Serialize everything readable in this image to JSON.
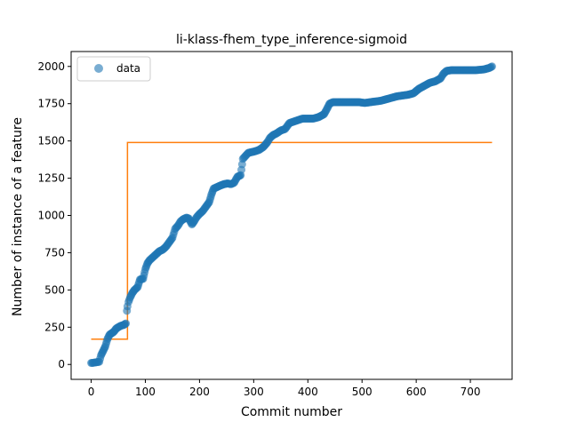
{
  "chart_data": {
    "type": "scatter",
    "title": "li-klass-fhem_type_inference-sigmoid",
    "xlabel": "Commit number",
    "ylabel": "Number of instance of a feature",
    "xlim": [
      -37,
      777
    ],
    "ylim": [
      -100,
      2100
    ],
    "xticks": [
      0,
      100,
      200,
      300,
      400,
      500,
      600,
      700
    ],
    "yticks": [
      0,
      250,
      500,
      750,
      1000,
      1250,
      1500,
      1750,
      2000
    ],
    "grid": false,
    "legend": {
      "placement": "top-left",
      "entries": [
        {
          "name": "data",
          "marker": "circle"
        }
      ]
    },
    "colors": {
      "data": "#1f77b4",
      "fit": "#ff7f0e"
    },
    "series": [
      {
        "name": "data",
        "kind": "scatter",
        "points": [
          [
            0,
            10
          ],
          [
            5,
            12
          ],
          [
            10,
            15
          ],
          [
            15,
            18
          ],
          [
            18,
            60
          ],
          [
            22,
            90
          ],
          [
            26,
            120
          ],
          [
            30,
            170
          ],
          [
            34,
            200
          ],
          [
            38,
            210
          ],
          [
            42,
            220
          ],
          [
            46,
            240
          ],
          [
            50,
            250
          ],
          [
            55,
            260
          ],
          [
            60,
            265
          ],
          [
            64,
            275
          ],
          [
            66,
            360
          ],
          [
            67,
            390
          ],
          [
            69,
            420
          ],
          [
            72,
            450
          ],
          [
            76,
            480
          ],
          [
            80,
            500
          ],
          [
            86,
            520
          ],
          [
            90,
            570
          ],
          [
            96,
            575
          ],
          [
            100,
            640
          ],
          [
            104,
            680
          ],
          [
            108,
            700
          ],
          [
            114,
            720
          ],
          [
            120,
            740
          ],
          [
            126,
            760
          ],
          [
            132,
            770
          ],
          [
            138,
            790
          ],
          [
            144,
            820
          ],
          [
            150,
            850
          ],
          [
            155,
            910
          ],
          [
            160,
            930
          ],
          [
            165,
            960
          ],
          [
            170,
            975
          ],
          [
            176,
            985
          ],
          [
            180,
            980
          ],
          [
            186,
            940
          ],
          [
            190,
            960
          ],
          [
            195,
            990
          ],
          [
            200,
            1010
          ],
          [
            206,
            1030
          ],
          [
            212,
            1060
          ],
          [
            218,
            1090
          ],
          [
            222,
            1140
          ],
          [
            226,
            1180
          ],
          [
            232,
            1190
          ],
          [
            238,
            1200
          ],
          [
            245,
            1210
          ],
          [
            252,
            1215
          ],
          [
            258,
            1210
          ],
          [
            264,
            1220
          ],
          [
            270,
            1260
          ],
          [
            276,
            1270
          ],
          [
            280,
            1380
          ],
          [
            285,
            1400
          ],
          [
            290,
            1420
          ],
          [
            296,
            1425
          ],
          [
            302,
            1430
          ],
          [
            310,
            1440
          ],
          [
            318,
            1460
          ],
          [
            325,
            1490
          ],
          [
            330,
            1520
          ],
          [
            336,
            1540
          ],
          [
            342,
            1550
          ],
          [
            350,
            1570
          ],
          [
            358,
            1580
          ],
          [
            366,
            1620
          ],
          [
            374,
            1630
          ],
          [
            382,
            1640
          ],
          [
            390,
            1650
          ],
          [
            400,
            1650
          ],
          [
            410,
            1650
          ],
          [
            420,
            1660
          ],
          [
            430,
            1680
          ],
          [
            436,
            1720
          ],
          [
            440,
            1750
          ],
          [
            446,
            1760
          ],
          [
            455,
            1760
          ],
          [
            465,
            1760
          ],
          [
            475,
            1760
          ],
          [
            485,
            1760
          ],
          [
            495,
            1760
          ],
          [
            505,
            1755
          ],
          [
            515,
            1760
          ],
          [
            525,
            1765
          ],
          [
            535,
            1770
          ],
          [
            545,
            1780
          ],
          [
            555,
            1790
          ],
          [
            565,
            1800
          ],
          [
            575,
            1805
          ],
          [
            585,
            1810
          ],
          [
            595,
            1820
          ],
          [
            605,
            1850
          ],
          [
            615,
            1870
          ],
          [
            625,
            1890
          ],
          [
            635,
            1900
          ],
          [
            645,
            1920
          ],
          [
            650,
            1950
          ],
          [
            656,
            1970
          ],
          [
            665,
            1975
          ],
          [
            680,
            1975
          ],
          [
            695,
            1975
          ],
          [
            710,
            1975
          ],
          [
            725,
            1980
          ],
          [
            735,
            1990
          ],
          [
            740,
            2000
          ]
        ]
      },
      {
        "name": "",
        "kind": "step-line",
        "points": [
          [
            0,
            170
          ],
          [
            67,
            170
          ],
          [
            67,
            1490
          ],
          [
            740,
            1490
          ]
        ]
      }
    ]
  }
}
